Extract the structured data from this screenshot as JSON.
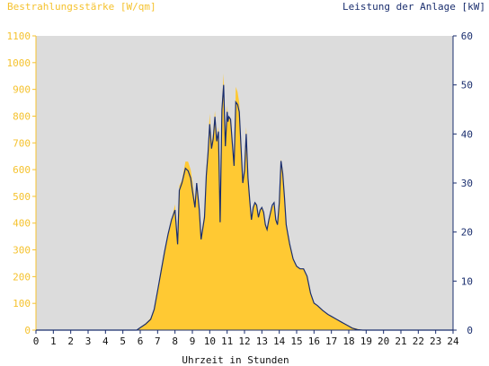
{
  "chart_data": {
    "type": "area",
    "left_axis_title": "Bestrahlungsstärke [W/qm]",
    "right_axis_title": "Leistung der Anlage [kW]",
    "xlabel": "Uhrzeit in Stunden",
    "xlim": [
      0,
      24
    ],
    "ylim_left": [
      0,
      1100
    ],
    "ylim_right": [
      0,
      60
    ],
    "x_ticks": [
      "0",
      "1",
      "2",
      "3",
      "4",
      "5",
      "6",
      "7",
      "8",
      "9",
      "10",
      "11",
      "12",
      "13",
      "14",
      "15",
      "16",
      "17",
      "18",
      "19",
      "20",
      "21",
      "22",
      "23",
      "24"
    ],
    "y_left_ticks": [
      "0",
      "100",
      "200",
      "300",
      "400",
      "500",
      "600",
      "700",
      "800",
      "900",
      "1000",
      "1100"
    ],
    "y_right_ticks": [
      "0",
      "10",
      "20",
      "30",
      "40",
      "50",
      "60"
    ],
    "grid": false,
    "colors": {
      "irradiance": "#ffc933",
      "power": "#1a2e6e",
      "plot_bg": "#dcdcdc",
      "left_axis": "#f5c22e",
      "right_axis": "#1a2e6e"
    },
    "series": [
      {
        "name": "Bestrahlungsstärke [W/qm]",
        "axis": "left",
        "x": [
          0,
          5.8,
          6.0,
          6.3,
          6.6,
          6.8,
          7.0,
          7.2,
          7.4,
          7.6,
          7.8,
          8.0,
          8.15,
          8.25,
          8.4,
          8.6,
          8.75,
          8.9,
          9.0,
          9.15,
          9.25,
          9.4,
          9.5,
          9.7,
          9.8,
          9.9,
          10.0,
          10.1,
          10.2,
          10.3,
          10.4,
          10.5,
          10.6,
          10.7,
          10.8,
          10.9,
          11.0,
          11.05,
          11.1,
          11.2,
          11.3,
          11.4,
          11.5,
          11.6,
          11.7,
          11.8,
          11.9,
          12.0,
          12.1,
          12.2,
          12.3,
          12.4,
          12.5,
          12.6,
          12.7,
          12.8,
          12.9,
          13.0,
          13.1,
          13.2,
          13.3,
          13.4,
          13.5,
          13.6,
          13.7,
          13.8,
          13.9,
          14.0,
          14.1,
          14.2,
          14.3,
          14.4,
          14.5,
          14.6,
          14.7,
          14.8,
          15.0,
          15.2,
          15.4,
          15.6,
          15.8,
          16.0,
          16.2,
          16.5,
          16.8,
          17.0,
          17.3,
          17.6,
          17.9,
          18.2,
          18.5,
          18.8,
          19.0,
          24
        ],
        "y": [
          0,
          0,
          10,
          25,
          45,
          80,
          150,
          230,
          300,
          360,
          410,
          470,
          330,
          540,
          560,
          630,
          630,
          600,
          560,
          480,
          550,
          470,
          350,
          440,
          600,
          680,
          810,
          700,
          740,
          820,
          720,
          760,
          410,
          840,
          960,
          690,
          840,
          790,
          800,
          780,
          700,
          620,
          910,
          890,
          850,
          700,
          560,
          620,
          760,
          580,
          490,
          420,
          460,
          480,
          470,
          420,
          450,
          460,
          440,
          400,
          380,
          420,
          440,
          460,
          470,
          420,
          400,
          480,
          640,
          600,
          500,
          400,
          360,
          320,
          290,
          270,
          240,
          230,
          230,
          200,
          140,
          100,
          90,
          75,
          60,
          50,
          40,
          30,
          20,
          10,
          5,
          0,
          0,
          0
        ],
        "values_note_hidden": ""
      },
      {
        "name": "Leistung der Anlage [kW]",
        "axis": "right",
        "x": [
          0,
          5.8,
          6.0,
          6.3,
          6.6,
          6.8,
          7.0,
          7.2,
          7.4,
          7.6,
          7.8,
          8.0,
          8.15,
          8.25,
          8.4,
          8.6,
          8.75,
          8.9,
          9.0,
          9.15,
          9.25,
          9.4,
          9.5,
          9.7,
          9.8,
          9.9,
          10.0,
          10.1,
          10.2,
          10.3,
          10.4,
          10.5,
          10.6,
          10.7,
          10.8,
          10.9,
          11.0,
          11.05,
          11.1,
          11.2,
          11.3,
          11.4,
          11.5,
          11.6,
          11.7,
          11.8,
          11.9,
          12.0,
          12.1,
          12.2,
          12.3,
          12.4,
          12.5,
          12.6,
          12.7,
          12.8,
          12.9,
          13.0,
          13.1,
          13.2,
          13.3,
          13.4,
          13.5,
          13.6,
          13.7,
          13.8,
          13.9,
          14.0,
          14.1,
          14.2,
          14.3,
          14.4,
          14.5,
          14.6,
          14.7,
          14.8,
          15.0,
          15.2,
          15.4,
          15.6,
          15.8,
          16.0,
          16.2,
          16.5,
          16.8,
          17.0,
          17.3,
          17.6,
          17.9,
          18.2,
          18.5,
          18.8,
          19.0,
          24
        ],
        "y": [
          0,
          0,
          0.5,
          1.2,
          2.2,
          4.2,
          8.0,
          12.0,
          16.0,
          19.5,
          22.5,
          24.5,
          17.5,
          28.5,
          30.0,
          33.0,
          32.5,
          31.0,
          28.5,
          25.0,
          30.0,
          24.5,
          18.5,
          23.0,
          31.5,
          36.0,
          42.0,
          37.0,
          39.0,
          43.5,
          38.5,
          40.5,
          22.0,
          45.0,
          50.0,
          37.5,
          44.5,
          42.5,
          43.5,
          43.0,
          38.0,
          33.5,
          46.5,
          46.0,
          44.5,
          37.5,
          30.0,
          32.5,
          40.0,
          31.0,
          26.5,
          22.5,
          25.0,
          26.0,
          25.5,
          23.0,
          24.5,
          25.0,
          24.0,
          21.5,
          20.5,
          22.5,
          24.0,
          25.5,
          26.0,
          22.5,
          21.5,
          26.0,
          34.5,
          32.0,
          27.0,
          21.5,
          19.5,
          17.5,
          16.0,
          14.5,
          13.0,
          12.5,
          12.5,
          11.0,
          7.5,
          5.5,
          5.0,
          4.0,
          3.2,
          2.8,
          2.2,
          1.6,
          1.0,
          0.4,
          0.1,
          0,
          0,
          0
        ]
      }
    ]
  }
}
